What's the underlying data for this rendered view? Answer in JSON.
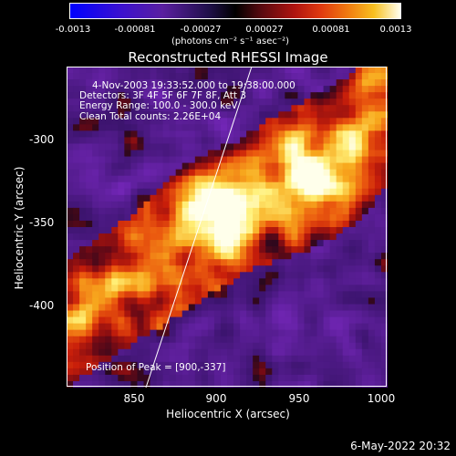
{
  "colorbar": {
    "ticks": [
      "-0.0013",
      "-0.00081",
      "-0.00027",
      "0.00027",
      "0.00081",
      "0.0013"
    ],
    "unit_label": "(photons cm⁻² s⁻¹ asec⁻²)"
  },
  "title": "Reconstructed RHESSI Image",
  "info": {
    "time": "4-Nov-2003 19:33:52.000 to 19:38:00.000",
    "detectors": "Detectors: 3F 4F 5F 6F 7F 8F, Att 3",
    "energy": "Energy Range: 100.0 - 300.0 keV",
    "method": "Clean     Total counts: 2.26E+04",
    "peak": "Position of Peak = [900,-337]"
  },
  "axes": {
    "xlabel": "Heliocentric X (arcsec)",
    "ylabel": "Heliocentric Y (arcsec)",
    "xticks": [
      "850",
      "900",
      "950",
      "1000"
    ],
    "yticks": [
      "-300",
      "-350",
      "-400"
    ]
  },
  "footer_date": "6-May-2022 20:32",
  "colors": {
    "background": "#000000",
    "limb_line": "#ffffff"
  }
}
